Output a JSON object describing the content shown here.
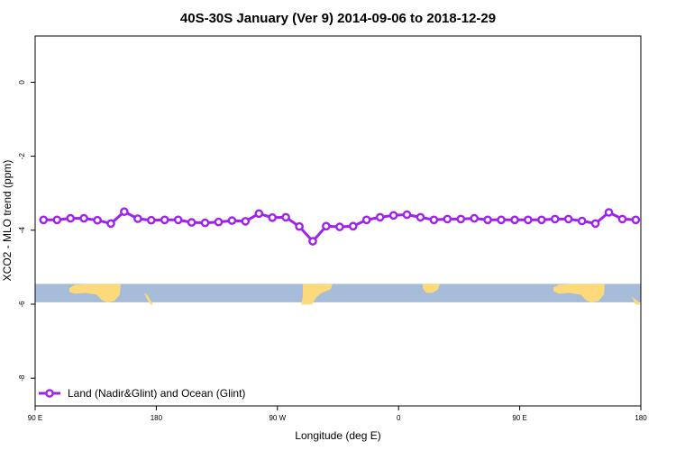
{
  "chart_data": {
    "type": "line",
    "title": "40S-30S January (Ver 9)   2014-09-06 to 2018-12-29",
    "xlabel": "Longitude (deg E)",
    "ylabel": "XCO2 - MLO trend (ppm)",
    "xlim": [
      90,
      450
    ],
    "ylim": [
      -8.75,
      1.25
    ],
    "x_ticks": [
      90,
      162,
      234,
      306,
      378,
      450
    ],
    "x_tick_labels": [
      "90 E",
      "180",
      "90 W",
      "0",
      "90 E",
      "180"
    ],
    "y_ticks": [
      0,
      -2,
      -4,
      -6,
      -8
    ],
    "y_tick_labels": [
      "0",
      "-2",
      "-4",
      "-6",
      "-8"
    ],
    "grid": false,
    "legend": "bottom-left",
    "series": [
      {
        "name": "Land (Nadir&Glint) and Ocean (Glint)",
        "color": "#a020f0",
        "x": [
          95,
          103,
          111,
          119,
          127,
          135,
          143,
          151,
          159,
          167,
          175,
          183,
          191,
          199,
          207,
          215,
          223,
          231,
          239,
          247,
          255,
          263,
          271,
          279,
          287,
          295,
          303,
          311,
          319,
          327,
          335,
          343,
          351,
          359,
          367,
          375,
          383,
          391,
          399,
          407,
          415,
          423,
          431,
          439,
          447
        ],
        "values": [
          -3.72,
          -3.72,
          -3.68,
          -3.68,
          -3.73,
          -3.82,
          -3.5,
          -3.69,
          -3.73,
          -3.72,
          -3.72,
          -3.79,
          -3.8,
          -3.78,
          -3.74,
          -3.76,
          -3.55,
          -3.66,
          -3.65,
          -3.9,
          -4.3,
          -3.89,
          -3.91,
          -3.89,
          -3.72,
          -3.65,
          -3.6,
          -3.58,
          -3.65,
          -3.72,
          -3.7,
          -3.7,
          -3.68,
          -3.72,
          -3.72,
          -3.72,
          -3.72,
          -3.72,
          -3.7,
          -3.7,
          -3.75,
          -3.82,
          -3.52,
          -3.7,
          -3.72
        ]
      }
    ],
    "map_strip": {
      "y_range": [
        -5.45,
        -5.95
      ],
      "ocean_color": "#a7bcd9",
      "land_color": "#fcd97b"
    }
  }
}
